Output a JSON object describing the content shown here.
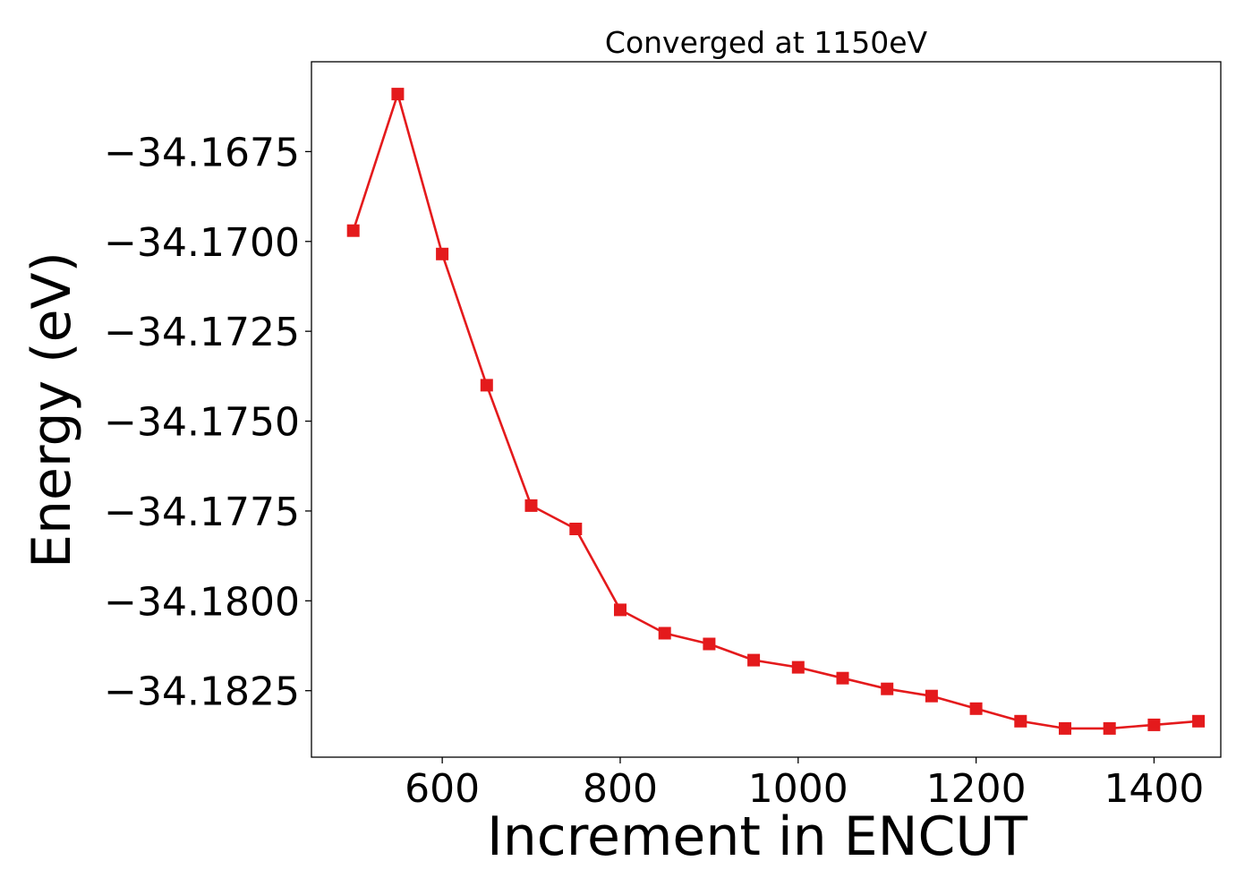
{
  "chart_data": {
    "type": "line",
    "title": "Converged at 1150eV",
    "xlabel": "Increment in ENCUT",
    "ylabel": "Energy (eV)",
    "x": [
      500,
      550,
      600,
      650,
      700,
      750,
      800,
      850,
      900,
      950,
      1000,
      1050,
      1100,
      1150,
      1200,
      1250,
      1300,
      1350,
      1400,
      1450
    ],
    "series": [
      {
        "values": [
          -34.1697,
          -34.1659,
          -34.17035,
          -34.174,
          -34.17735,
          -34.178,
          -34.18025,
          -34.1809,
          -34.1812,
          -34.18165,
          -34.18185,
          -34.18215,
          -34.18245,
          -34.18265,
          -34.183,
          -34.18335,
          -34.18355,
          -34.18355,
          -34.18345,
          -34.18335
        ],
        "color": "#e41a1c",
        "marker": "square"
      }
    ],
    "xlim": [
      453,
      1475
    ],
    "ylim": [
      -34.18435,
      -34.165
    ],
    "xticks": [
      600,
      800,
      1000,
      1200,
      1400
    ],
    "xtick_labels": [
      "600",
      "800",
      "1000",
      "1200",
      "1400"
    ],
    "yticks": [
      -34.1675,
      -34.17,
      -34.1725,
      -34.175,
      -34.1775,
      -34.18,
      -34.1825
    ],
    "ytick_labels": [
      "−34.1675",
      "−34.1700",
      "−34.1725",
      "−34.1750",
      "−34.1775",
      "−34.1800",
      "−34.1825"
    ],
    "grid": false,
    "legend": "none"
  }
}
